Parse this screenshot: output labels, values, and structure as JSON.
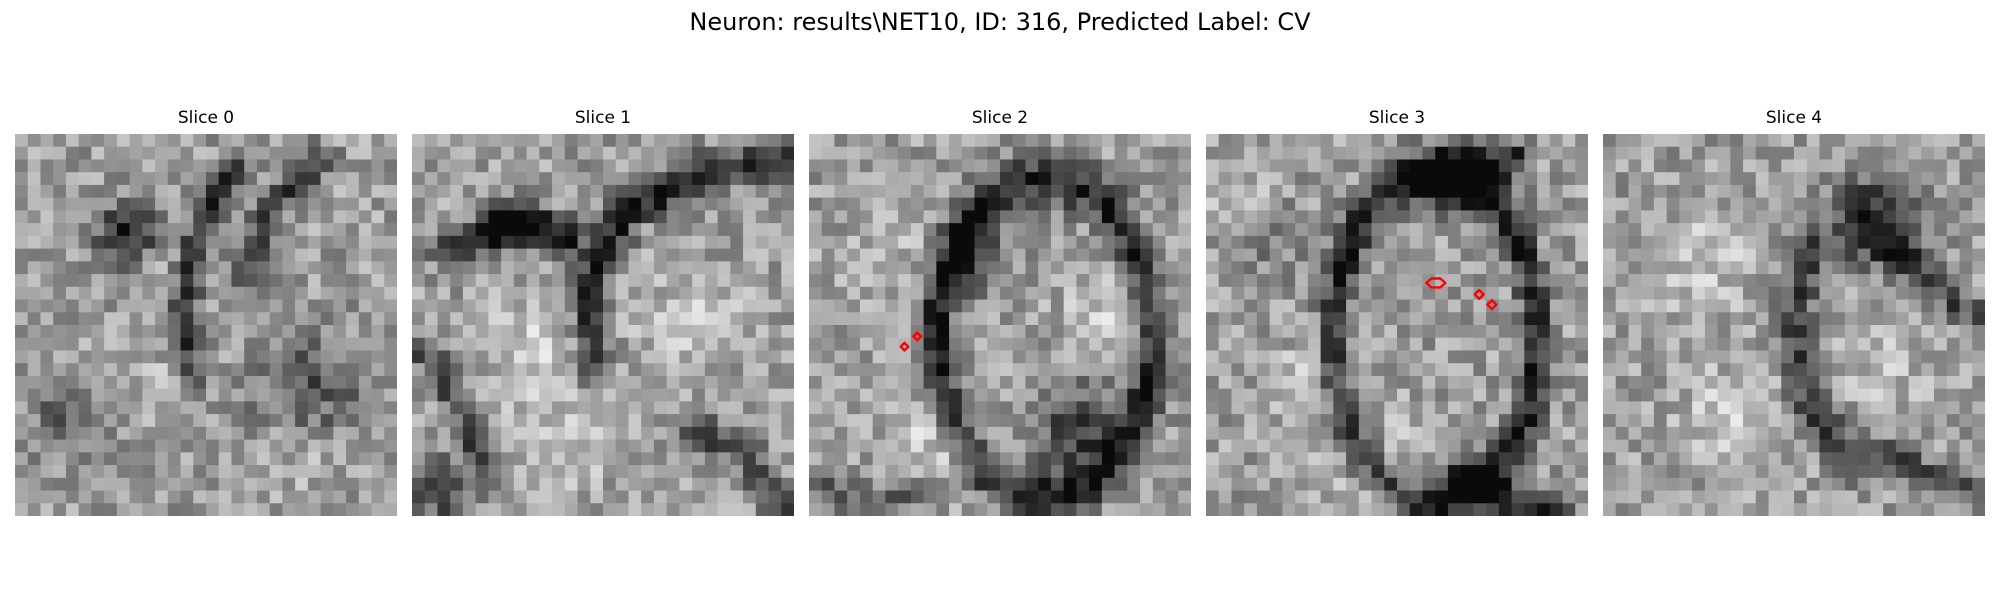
{
  "figure": {
    "title": "Neuron: results\\NET10, ID: 316, Predicted Label: CV"
  },
  "colors": {
    "background": "#ffffff",
    "contour": "#ff0000",
    "colormap": "grayscale"
  },
  "slices": [
    {
      "title": "Slice 0"
    },
    {
      "title": "Slice 1"
    },
    {
      "title": "Slice 2"
    },
    {
      "title": "Slice 3"
    },
    {
      "title": "Slice 4"
    }
  ]
}
